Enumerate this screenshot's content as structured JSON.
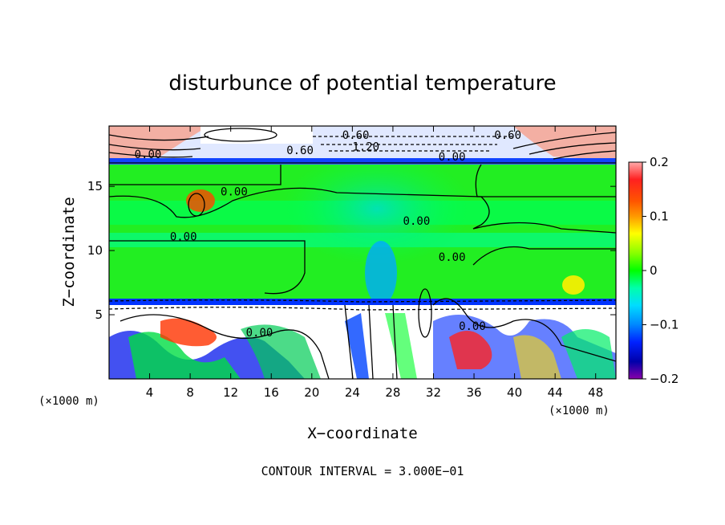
{
  "chart_data": {
    "type": "heatmap",
    "title": "disturbunce of potential temperature",
    "xlabel": "X−coordinate",
    "ylabel": "Z−coordinate",
    "x_unit": "(×1000 m)",
    "z_unit": "(×1000 m)",
    "xlim": [
      0,
      50
    ],
    "zlim": [
      0,
      19.7
    ],
    "x_ticks": [
      4,
      8,
      12,
      16,
      20,
      24,
      28,
      32,
      36,
      40,
      44,
      48
    ],
    "z_ticks": [
      5,
      10,
      15
    ],
    "colorbar": {
      "range": [
        -0.2,
        0.2
      ],
      "ticks": [
        0.2,
        0.1,
        0,
        -0.1,
        -0.2
      ],
      "tick_labels": [
        "0.2",
        "0.1",
        "0",
        "−0.1",
        "−0.2"
      ],
      "colors": [
        "#ff9999",
        "#ff0000",
        "#ff5500",
        "#ff8800",
        "#ffcc00",
        "#ffff00",
        "#aaff00",
        "#55ff00",
        "#00ff00",
        "#00ff66",
        "#00ffcc",
        "#00eeff",
        "#00bbff",
        "#0088ff",
        "#0055ff",
        "#0000ff",
        "#0000aa",
        "#6600cc",
        "#8800aa"
      ]
    },
    "contour_interval_text": "CONTOUR INTERVAL = 3.000E−01",
    "contour_labels": [
      {
        "text": "0.00",
        "x": 2.5,
        "z": 17.2
      },
      {
        "text": "0.60",
        "x": 23,
        "z": 18.7
      },
      {
        "text": "0.60",
        "x": 17.5,
        "z": 17.5
      },
      {
        "text": "1.20",
        "x": 24,
        "z": 17.8
      },
      {
        "text": "0.60",
        "x": 38,
        "z": 18.7
      },
      {
        "text": "0.00",
        "x": 32.5,
        "z": 17.0
      },
      {
        "text": "0.00",
        "x": 11,
        "z": 14.3
      },
      {
        "text": "0.00",
        "x": 29,
        "z": 12.0
      },
      {
        "text": "0.00",
        "x": 6,
        "z": 10.8
      },
      {
        "text": "0.00",
        "x": 32.5,
        "z": 9.2
      },
      {
        "text": "0.00",
        "x": 13.5,
        "z": 3.3
      },
      {
        "text": "0.00",
        "x": 34.5,
        "z": 3.8
      }
    ],
    "grid": false,
    "legend_position": "right"
  }
}
